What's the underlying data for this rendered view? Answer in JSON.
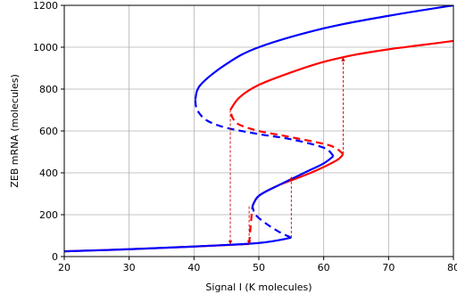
{
  "chart_data": {
    "type": "line",
    "xlabel": "Signal I (K molecules)",
    "ylabel": "ZEB mRNA (molecules)",
    "xlim": [
      20,
      80
    ],
    "ylim": [
      0,
      1200
    ],
    "xticks": [
      "20",
      "30",
      "40",
      "50",
      "60",
      "70",
      "80"
    ],
    "yticks": [
      "0",
      "200",
      "400",
      "600",
      "800",
      "1000",
      "1200"
    ],
    "grid": true,
    "legend": "none",
    "series": [
      {
        "color": "#0000ff",
        "style": "solid",
        "points": [
          [
            20,
            25
          ],
          [
            30,
            35
          ],
          [
            40,
            48
          ],
          [
            50,
            65
          ],
          [
            55,
            90
          ]
        ]
      },
      {
        "color": "#0000ff",
        "style": "dashed",
        "points": [
          [
            55,
            90
          ],
          [
            53,
            120
          ],
          [
            51,
            160
          ],
          [
            49.5,
            200
          ],
          [
            49,
            240
          ]
        ]
      },
      {
        "color": "#0000ff",
        "style": "solid",
        "points": [
          [
            49,
            240
          ],
          [
            50,
            290
          ],
          [
            53,
            340
          ],
          [
            57,
            400
          ],
          [
            60,
            445
          ],
          [
            61.5,
            480
          ]
        ]
      },
      {
        "color": "#0000ff",
        "style": "dashed",
        "points": [
          [
            61.5,
            480
          ],
          [
            60,
            520
          ],
          [
            55,
            560
          ],
          [
            50,
            585
          ],
          [
            45,
            615
          ],
          [
            42,
            650
          ],
          [
            40.5,
            700
          ],
          [
            40.2,
            750
          ]
        ]
      },
      {
        "color": "#0000ff",
        "style": "solid",
        "points": [
          [
            40.2,
            750
          ],
          [
            41,
            820
          ],
          [
            45,
            920
          ],
          [
            50,
            1000
          ],
          [
            60,
            1090
          ],
          [
            70,
            1150
          ],
          [
            80,
            1200
          ]
        ]
      },
      {
        "color": "#ff0000",
        "style": "solid",
        "points": [
          [
            20,
            25
          ],
          [
            30,
            35
          ],
          [
            40,
            48
          ],
          [
            48.5,
            60
          ]
        ]
      },
      {
        "color": "#ff0000",
        "style": "dashed",
        "points": [
          [
            48.5,
            60
          ],
          [
            49,
            240
          ]
        ]
      },
      {
        "color": "#ff0000",
        "style": "solid",
        "points": [
          [
            49,
            240
          ],
          [
            50,
            290
          ],
          [
            53,
            340
          ],
          [
            58,
            400
          ],
          [
            62,
            460
          ],
          [
            63,
            490
          ]
        ]
      },
      {
        "color": "#ff0000",
        "style": "dashed",
        "points": [
          [
            63,
            490
          ],
          [
            61,
            530
          ],
          [
            55,
            570
          ],
          [
            50,
            600
          ],
          [
            47,
            630
          ],
          [
            46,
            660
          ],
          [
            45.6,
            700
          ]
        ]
      },
      {
        "color": "#ff0000",
        "style": "solid",
        "points": [
          [
            45.6,
            700
          ],
          [
            47,
            760
          ],
          [
            50,
            820
          ],
          [
            55,
            880
          ],
          [
            60,
            930
          ],
          [
            65,
            965
          ],
          [
            70,
            990
          ],
          [
            75,
            1010
          ],
          [
            80,
            1030
          ]
        ]
      }
    ],
    "transitions": [
      {
        "x": 45.6,
        "from": 700,
        "to": 60
      },
      {
        "x": 48.5,
        "from": 240,
        "to": 60
      },
      {
        "x": 55,
        "from": 90,
        "to": 380
      },
      {
        "x": 63,
        "from": 490,
        "to": 950
      }
    ]
  }
}
